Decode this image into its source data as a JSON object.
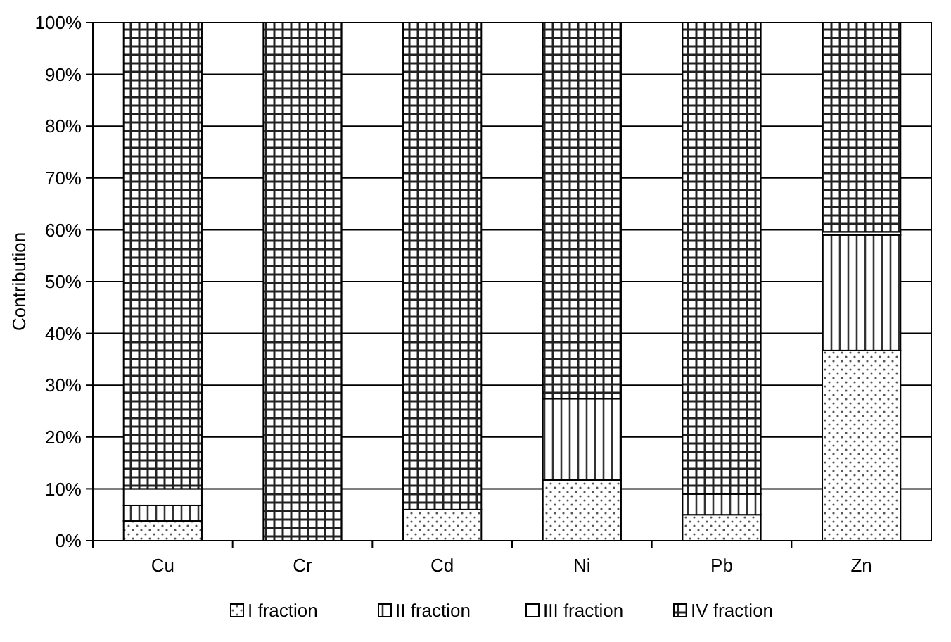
{
  "chart_data": {
    "type": "bar",
    "stacked": true,
    "ylabel": "Contribution",
    "categories": [
      "Cu",
      "Cr",
      "Cd",
      "Ni",
      "Pb",
      "Zn"
    ],
    "series": [
      {
        "name": "I fraction",
        "values": [
          3.8,
          null,
          6,
          11.7,
          5,
          36.7
        ]
      },
      {
        "name": "II fraction",
        "values": [
          3,
          0,
          0,
          15.7,
          4,
          22.3
        ]
      },
      {
        "name": "III fraction",
        "values": [
          3.2,
          0,
          0,
          0,
          0,
          0.6
        ]
      },
      {
        "name": "IV fraction",
        "values": [
          90,
          100,
          94,
          72.6,
          91,
          40.4
        ]
      }
    ],
    "ylim": [
      0,
      100
    ],
    "yticks": [
      {
        "value": 0,
        "label": "0%"
      },
      {
        "value": 10,
        "label": "10%"
      },
      {
        "value": 20,
        "label": "20%"
      },
      {
        "value": 30,
        "label": "30%"
      },
      {
        "value": 40,
        "label": "40%"
      },
      {
        "value": 50,
        "label": "50%"
      },
      {
        "value": 60,
        "label": "60%"
      },
      {
        "value": 70,
        "label": "70%"
      },
      {
        "value": 80,
        "label": "80%"
      },
      {
        "value": 90,
        "label": "90%"
      },
      {
        "value": 100,
        "label": "100%"
      }
    ],
    "grid": "y",
    "legend": "bottom"
  }
}
